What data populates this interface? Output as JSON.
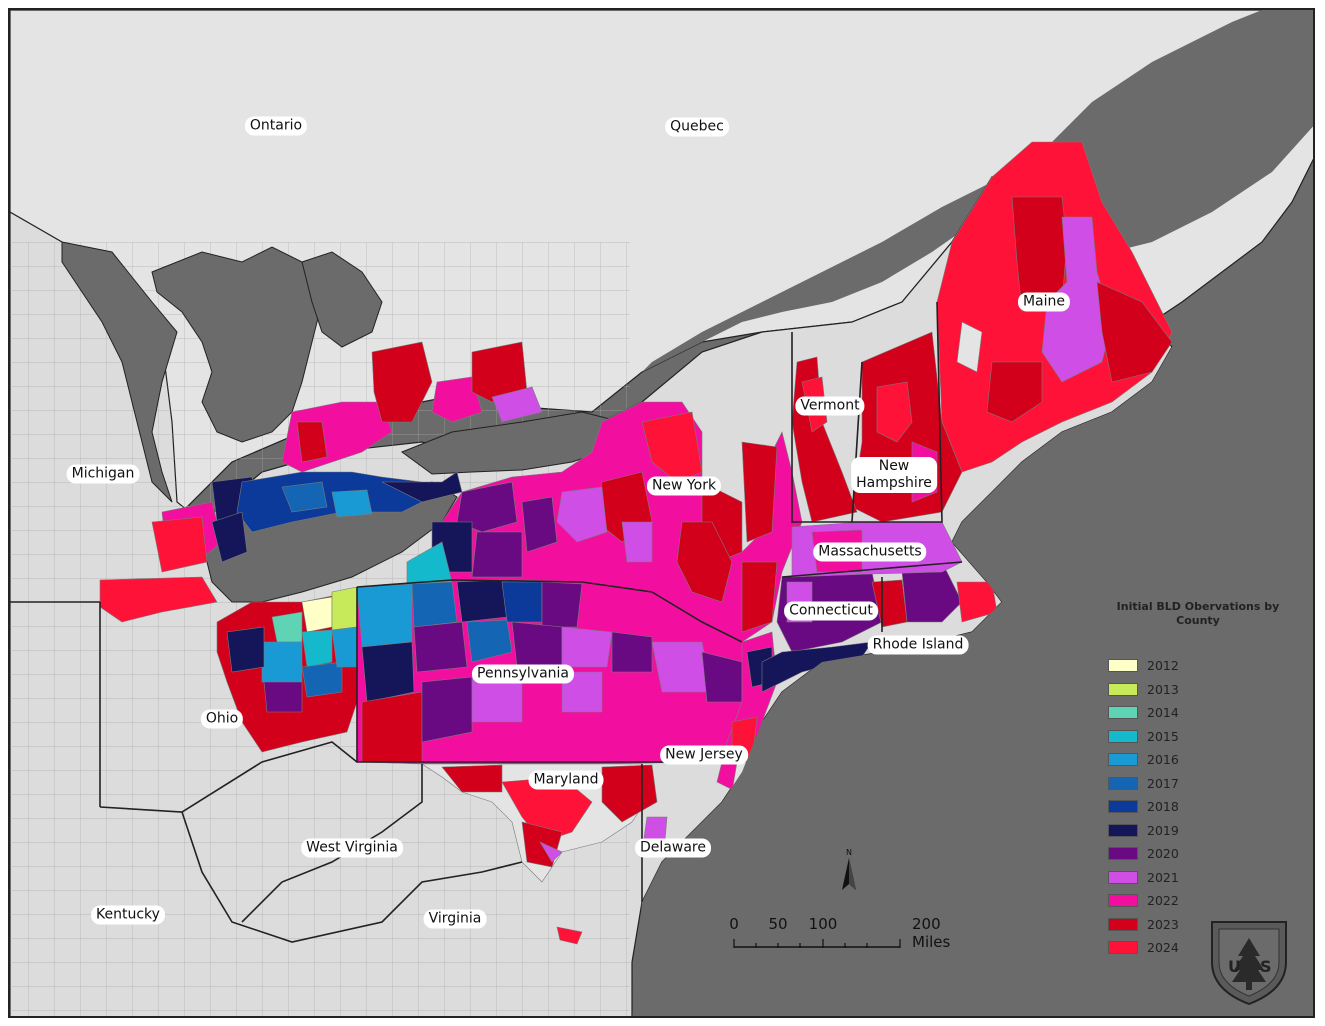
{
  "map": {
    "colors": {
      "water": "#6b6b6b",
      "land_us": "#dcdcdc",
      "land_canada": "#e4e4e4",
      "lake": "#6b6b6b",
      "boundary": "#222222",
      "county_line": "#9a9a9a"
    },
    "labels": {
      "ontario": "Ontario",
      "quebec": "Quebec",
      "michigan": "Michigan",
      "maine": "Maine",
      "vermont": "Vermont",
      "new_york": "New York",
      "new_hampshire": "New\nHampshire",
      "massachusetts": "Massachusetts",
      "connecticut": "Connecticut",
      "rhode_island": "Rhode Island",
      "pennsylvania": "Pennsylvania",
      "ohio": "Ohio",
      "new_jersey": "New Jersey",
      "maryland": "Maryland",
      "delaware": "Delaware",
      "west_virginia": "West Virginia",
      "virginia": "Virginia",
      "kentucky": "Kentucky"
    }
  },
  "legend": {
    "title": "Initial BLD Obervations by\nCounty",
    "items": [
      {
        "year": "2012",
        "color": "#ffffc8"
      },
      {
        "year": "2013",
        "color": "#c6ea5a"
      },
      {
        "year": "2014",
        "color": "#5fd4b4"
      },
      {
        "year": "2015",
        "color": "#14b9cc"
      },
      {
        "year": "2016",
        "color": "#1a9ad4"
      },
      {
        "year": "2017",
        "color": "#1565b5"
      },
      {
        "year": "2018",
        "color": "#0b3a9a"
      },
      {
        "year": "2019",
        "color": "#15155a"
      },
      {
        "year": "2020",
        "color": "#6a0a82"
      },
      {
        "year": "2021",
        "color": "#cf4ee6"
      },
      {
        "year": "2022",
        "color": "#f20fa0"
      },
      {
        "year": "2023",
        "color": "#d3001c"
      },
      {
        "year": "2024",
        "color": "#ff1238"
      }
    ]
  },
  "scalebar": {
    "ticks": [
      "0",
      "50",
      "100",
      "200 Miles"
    ]
  },
  "north_arrow": {
    "letter": "N"
  },
  "logo": {
    "name": "forest-service-shield",
    "text": "U S"
  }
}
